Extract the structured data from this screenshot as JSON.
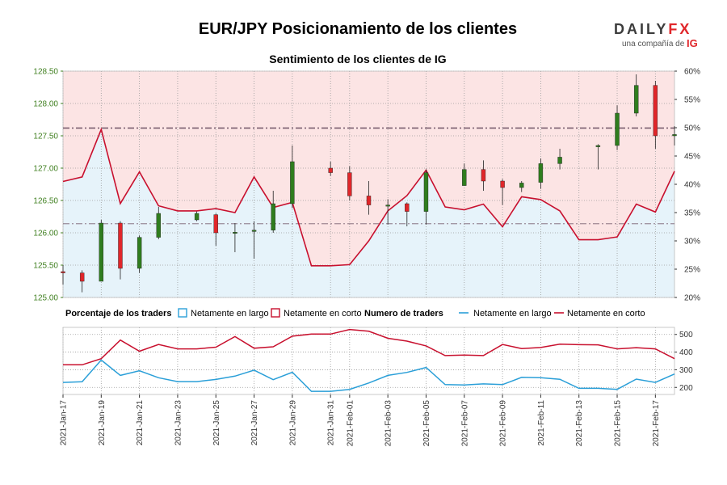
{
  "page": {
    "title": "EUR/JPY Posicionamiento de los clientes",
    "logo": {
      "main_a": "DAILY",
      "main_b": "FX",
      "sub": "una compañía de",
      "brand": "IG"
    }
  },
  "colors": {
    "short_zone": "#fce4e4",
    "long_zone": "#e6f3fa",
    "bull": "#2f7d1e",
    "bear": "#e0262a",
    "long_line": "#2a9fd8",
    "short_line": "#c8102e",
    "price_axis": "#3f7f1f",
    "pct_axis": "#333333",
    "grid": "#9a9a9a",
    "level_line": "#7a6070"
  },
  "chart_data": [
    {
      "type": "candlestick",
      "title": "Sentimiento de los clientes de IG",
      "ylim": [
        125.0,
        128.5
      ],
      "y_ticks": [
        "125.00",
        "125.50",
        "126.00",
        "126.50",
        "127.00",
        "127.50",
        "128.00",
        "128.50"
      ],
      "y2lim": [
        20,
        60
      ],
      "y2_ticks": [
        "20%",
        "25%",
        "30%",
        "35%",
        "40%",
        "45%",
        "50%",
        "55%",
        "60%"
      ],
      "short_level": 127.62,
      "long_level": 126.14,
      "candles": [
        {
          "x": 0.0,
          "o": 125.4,
          "h": 125.5,
          "l": 125.2,
          "c": 125.38
        },
        {
          "x": 1.0,
          "o": 125.38,
          "h": 125.42,
          "l": 125.08,
          "c": 125.25
        },
        {
          "x": 2.0,
          "o": 125.25,
          "h": 126.2,
          "l": 125.25,
          "c": 126.15
        },
        {
          "x": 3.0,
          "o": 126.15,
          "h": 126.18,
          "l": 125.28,
          "c": 125.45
        },
        {
          "x": 4.0,
          "o": 125.45,
          "h": 125.96,
          "l": 125.38,
          "c": 125.93
        },
        {
          "x": 5.0,
          "o": 125.93,
          "h": 126.4,
          "l": 125.9,
          "c": 126.3
        },
        {
          "x": 7.0,
          "o": 126.2,
          "h": 126.33,
          "l": 126.18,
          "c": 126.3
        },
        {
          "x": 8.0,
          "o": 126.28,
          "h": 126.3,
          "l": 125.8,
          "c": 126.0
        },
        {
          "x": 9.0,
          "o": 126.0,
          "h": 126.15,
          "l": 125.7,
          "c": 126.01
        },
        {
          "x": 10.0,
          "o": 126.02,
          "h": 126.18,
          "l": 125.6,
          "c": 126.04
        },
        {
          "x": 11.0,
          "o": 126.04,
          "h": 126.65,
          "l": 126.0,
          "c": 126.45
        },
        {
          "x": 12.0,
          "o": 126.45,
          "h": 127.35,
          "l": 126.38,
          "c": 127.1
        },
        {
          "x": 14.0,
          "o": 127.0,
          "h": 127.1,
          "l": 126.88,
          "c": 126.93
        },
        {
          "x": 15.0,
          "o": 126.93,
          "h": 127.03,
          "l": 126.5,
          "c": 126.57
        },
        {
          "x": 16.0,
          "o": 126.57,
          "h": 126.8,
          "l": 126.28,
          "c": 126.43
        },
        {
          "x": 17.0,
          "o": 126.43,
          "h": 126.52,
          "l": 126.13,
          "c": 126.43
        },
        {
          "x": 18.0,
          "o": 126.45,
          "h": 126.47,
          "l": 126.1,
          "c": 126.33
        },
        {
          "x": 19.0,
          "o": 126.33,
          "h": 126.98,
          "l": 126.13,
          "c": 126.93
        },
        {
          "x": 21.0,
          "o": 126.73,
          "h": 127.07,
          "l": 126.73,
          "c": 126.98
        },
        {
          "x": 22.0,
          "o": 126.98,
          "h": 127.12,
          "l": 126.65,
          "c": 126.8
        },
        {
          "x": 23.0,
          "o": 126.8,
          "h": 126.83,
          "l": 126.43,
          "c": 126.7
        },
        {
          "x": 24.0,
          "o": 126.7,
          "h": 126.8,
          "l": 126.63,
          "c": 126.77
        },
        {
          "x": 25.0,
          "o": 126.78,
          "h": 127.15,
          "l": 126.68,
          "c": 127.07
        },
        {
          "x": 26.0,
          "o": 127.07,
          "h": 127.3,
          "l": 126.98,
          "c": 127.17
        },
        {
          "x": 28.0,
          "o": 127.33,
          "h": 127.37,
          "l": 126.98,
          "c": 127.35
        },
        {
          "x": 29.0,
          "o": 127.35,
          "h": 127.97,
          "l": 127.28,
          "c": 127.85
        },
        {
          "x": 30.0,
          "o": 127.85,
          "h": 128.45,
          "l": 127.8,
          "c": 128.28
        },
        {
          "x": 31.0,
          "o": 128.28,
          "h": 128.35,
          "l": 127.3,
          "c": 127.5
        },
        {
          "x": 32.0,
          "o": 127.5,
          "h": 127.65,
          "l": 127.35,
          "c": 127.52
        }
      ],
      "long_pct_series": {
        "x": [
          0,
          1,
          2,
          3,
          4,
          5,
          6,
          7,
          8,
          9,
          10,
          11,
          12,
          13,
          14,
          15,
          16,
          17,
          18,
          19,
          20,
          21,
          22,
          23,
          24,
          25,
          26,
          27,
          28,
          29,
          30,
          31,
          32
        ],
        "values": [
          40.5,
          41.3,
          49.7,
          36.6,
          42.2,
          36.2,
          35.3,
          35.3,
          35.7,
          35.0,
          41.3,
          35.9,
          36.8,
          25.6,
          25.6,
          25.8,
          30.0,
          35.3,
          38.0,
          42.5,
          36.0,
          35.5,
          36.5,
          32.5,
          37.8,
          37.3,
          35.3,
          30.2,
          30.2,
          30.7,
          36.5,
          35.1,
          42.3
        ]
      },
      "x_labels": [
        "2021-Jan-17",
        "2021-Jan-19",
        "2021-Jan-21",
        "2021-Jan-23",
        "2021-Jan-25",
        "2021-Jan-27",
        "2021-Jan-29",
        "2021-Jan-31",
        "2021-Feb-01",
        "2021-Feb-03",
        "2021-Feb-05",
        "2021-Feb-07",
        "2021-Feb-09",
        "2021-Feb-11",
        "2021-Feb-13",
        "2021-Feb-15",
        "2021-Feb-17"
      ],
      "x_label_positions": [
        0,
        2,
        4,
        6,
        8,
        10,
        12,
        14,
        15,
        17,
        19,
        21,
        23,
        25,
        27,
        29,
        31
      ]
    },
    {
      "type": "line",
      "ylim": [
        160,
        540
      ],
      "y_ticks": [
        "200",
        "300",
        "400",
        "500"
      ],
      "legend": {
        "pct_title": "Porcentaje de los traders",
        "long_label": "Netamente en largo",
        "short_label": "Netamente en corto",
        "num_title": "Numero de traders"
      },
      "x": [
        0,
        1,
        2,
        3,
        4,
        5,
        6,
        7,
        8,
        9,
        10,
        11,
        12,
        13,
        14,
        15,
        16,
        17,
        18,
        19,
        20,
        21,
        22,
        23,
        24,
        25,
        26,
        27,
        28,
        29,
        30,
        31,
        32
      ],
      "series": [
        {
          "name": "Netamente en largo",
          "values": [
            228,
            232,
            355,
            268,
            294,
            255,
            233,
            233,
            245,
            264,
            298,
            244,
            286,
            178,
            178,
            189,
            225,
            268,
            285,
            313,
            216,
            214,
            220,
            216,
            257,
            255,
            246,
            195,
            195,
            189,
            247,
            228,
            276
          ]
        },
        {
          "name": "Netamente en corto",
          "values": [
            328,
            328,
            363,
            468,
            405,
            443,
            418,
            418,
            428,
            488,
            422,
            430,
            490,
            502,
            502,
            528,
            518,
            478,
            462,
            435,
            380,
            383,
            380,
            443,
            420,
            426,
            445,
            442,
            441,
            418,
            425,
            418,
            363
          ]
        }
      ]
    }
  ]
}
